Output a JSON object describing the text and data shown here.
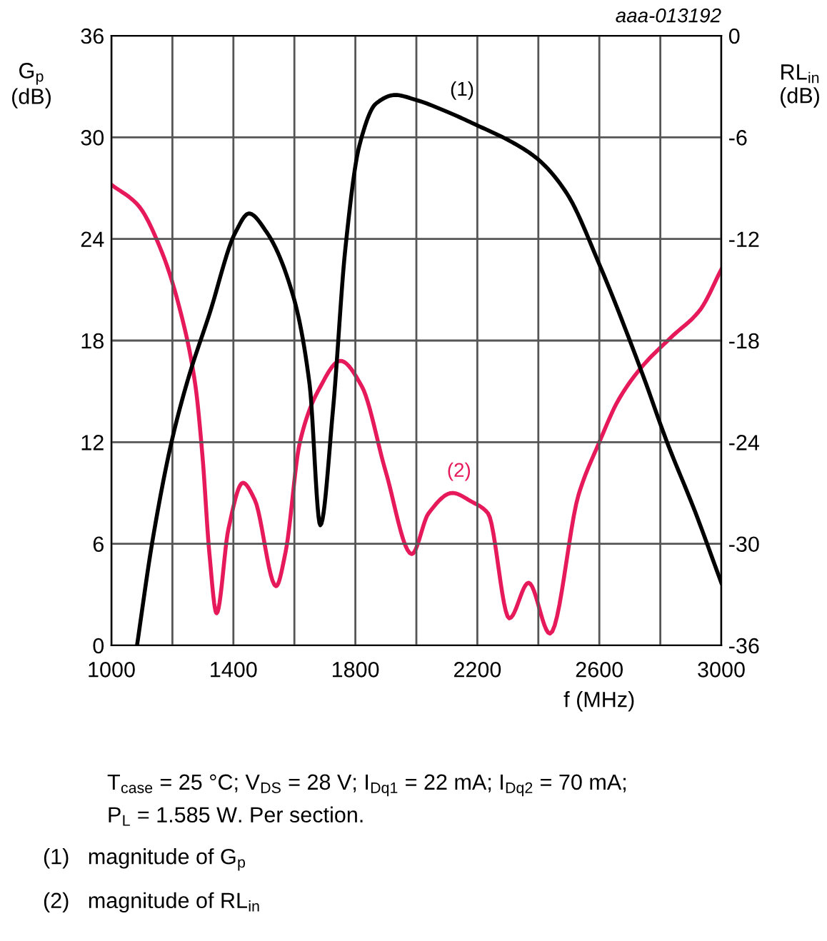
{
  "chart_data": {
    "type": "line",
    "xlabel": "f (MHz)",
    "ylabel": "G$_{p}$\n(dB)",
    "y2label": "RL$_{in}$\n(dB)",
    "xlim": [
      1000,
      3000
    ],
    "xticks": [
      1000,
      {
        "value": 1200,
        "label": null
      },
      1400,
      {
        "value": 1600,
        "label": null
      },
      1800,
      {
        "value": 2000,
        "label": null
      },
      2200,
      {
        "value": 2400,
        "label": null
      },
      2600,
      {
        "value": 2800,
        "label": null
      },
      3000
    ],
    "ylim": [
      0,
      36
    ],
    "yticks": [
      0,
      6,
      12,
      18,
      24,
      30,
      36
    ],
    "y2lim": [
      -36,
      0
    ],
    "y2ticks": [
      -36,
      -30,
      -24,
      -18,
      -12,
      -6,
      0
    ],
    "grid": true,
    "legend": false,
    "line_style": "solid",
    "marker": "none",
    "series": [
      {
        "color": "#000000",
        "x": [
          1084,
          1134,
          1197,
          1251,
          1322,
          1407,
          1451,
          1509,
          1595,
          1650,
          1685,
          1727,
          1767,
          1813,
          1868,
          1930,
          2000,
          2102,
          2200,
          2305,
          2399,
          2493,
          2600,
          2742,
          2820,
          2914,
          3000
        ],
        "values": [
          0,
          6.1,
          12.0,
          15.7,
          19.6,
          24.4,
          25.5,
          24.4,
          20.7,
          15.4,
          7.1,
          14.0,
          23.4,
          29.5,
          32.0,
          32.5,
          32.2,
          31.5,
          30.7,
          29.8,
          28.7,
          26.7,
          22.5,
          16.0,
          12.1,
          7.9,
          3.7
        ]
      },
      {
        "color": "#e6195a",
        "axis": "y2",
        "x": [
          1000,
          1087,
          1166,
          1228,
          1275,
          1299,
          1321,
          1345,
          1384,
          1431,
          1470,
          1540,
          1571,
          1618,
          1680,
          1751,
          1821,
          1899,
          1985,
          2040,
          2118,
          2180,
          2235,
          2305,
          2368,
          2438,
          2532,
          2600,
          2663,
          2742,
          2836,
          2930,
          3000
        ],
        "values": [
          -8.8,
          -10.0,
          -12.8,
          -16.4,
          -20.6,
          -24.9,
          -30.5,
          -34.1,
          -29.1,
          -26.4,
          -27.4,
          -32.5,
          -30.5,
          -24.0,
          -20.9,
          -19.2,
          -20.7,
          -25.7,
          -30.6,
          -28.2,
          -27.0,
          -27.5,
          -28.2,
          -34.4,
          -32.3,
          -35.3,
          -27.1,
          -24.0,
          -21.5,
          -19.5,
          -17.8,
          -16.2,
          -13.8
        ]
      }
    ],
    "annotations": [
      "(1)",
      "(2)",
      "aaa-013192",
      "T$_{case}$ = 25 °C; V$_{DS}$ = 28 V; I$_{Dq1}$ = 22 mA; I$_{Dq2}$ = 70 mA;",
      "P$_{L}$ = 1.585 W. Per section.",
      "(1)   magnitude of G$_{p}$",
      "(2)   magnitude of RL$_{in}$"
    ]
  }
}
